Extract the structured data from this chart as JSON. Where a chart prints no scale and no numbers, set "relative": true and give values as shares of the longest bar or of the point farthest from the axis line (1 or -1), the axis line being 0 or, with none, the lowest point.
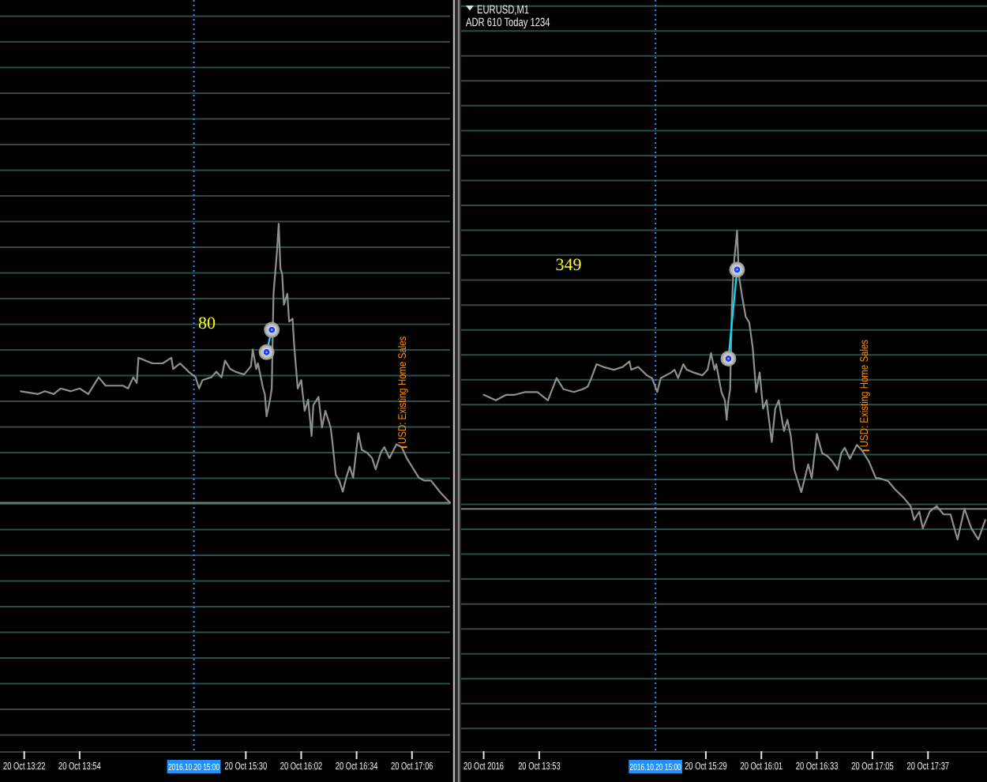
{
  "chart_data": [
    {
      "type": "line",
      "relative": true,
      "grid": "y",
      "xlim": [
        "2016-10-20T13:08",
        "2016-10-20T17:28"
      ],
      "xticks": [
        {
          "value": "2016-10-20T13:22",
          "label": "20 Oct 13:22"
        },
        {
          "value": "2016-10-20T13:54",
          "label": "20 Oct 13:54"
        },
        {
          "value": "2016-10-20T15:30",
          "label": "20 Oct 15:30"
        },
        {
          "value": "2016-10-20T16:02",
          "label": "20 Oct 16:02"
        },
        {
          "value": "2016-10-20T16:34",
          "label": "20 Oct 16:34"
        },
        {
          "value": "2016-10-20T17:06",
          "label": "20 Oct 17:06"
        }
      ],
      "x": [
        "2016-10-20T13:20",
        "2016-10-20T13:30",
        "2016-10-20T13:34",
        "2016-10-20T13:39",
        "2016-10-20T13:43",
        "2016-10-20T13:49",
        "2016-10-20T13:54",
        "2016-10-20T13:59",
        "2016-10-20T14:05",
        "2016-10-20T14:09",
        "2016-10-20T14:13",
        "2016-10-20T14:19",
        "2016-10-20T14:22",
        "2016-10-20T14:25",
        "2016-10-20T14:27",
        "2016-10-20T14:28",
        "2016-10-20T14:32",
        "2016-10-20T14:36",
        "2016-10-20T14:42",
        "2016-10-20T14:47",
        "2016-10-20T14:48",
        "2016-10-20T14:52",
        "2016-10-20T14:57",
        "2016-10-20T15:01",
        "2016-10-20T15:03",
        "2016-10-20T15:05",
        "2016-10-20T15:10",
        "2016-10-20T15:13",
        "2016-10-20T15:16",
        "2016-10-20T15:18",
        "2016-10-20T15:21",
        "2016-10-20T15:24",
        "2016-10-20T15:29",
        "2016-10-20T15:33",
        "2016-10-20T15:34",
        "2016-10-20T15:36",
        "2016-10-20T15:37",
        "2016-10-20T15:40",
        "2016-10-20T15:41",
        "2016-10-20T15:42",
        "2016-10-20T15:44",
        "2016-10-20T15:45",
        "2016-10-20T15:46",
        "2016-10-20T15:48",
        "2016-10-20T15:49",
        "2016-10-20T15:50",
        "2016-10-20T15:51",
        "2016-10-20T15:52",
        "2016-10-20T15:54",
        "2016-10-20T15:55",
        "2016-10-20T15:57",
        "2016-10-20T15:58",
        "2016-10-20T16:00",
        "2016-10-20T16:02",
        "2016-10-20T16:04",
        "2016-10-20T16:06",
        "2016-10-20T16:08",
        "2016-10-20T16:09",
        "2016-10-20T16:12",
        "2016-10-20T16:14",
        "2016-10-20T16:16",
        "2016-10-20T16:19",
        "2016-10-20T16:20",
        "2016-10-20T16:22",
        "2016-10-20T16:24",
        "2016-10-20T16:26",
        "2016-10-20T16:28",
        "2016-10-20T16:30",
        "2016-10-20T16:32",
        "2016-10-20T16:35",
        "2016-10-20T16:37",
        "2016-10-20T16:40",
        "2016-10-20T16:43",
        "2016-10-20T16:45",
        "2016-10-20T16:48",
        "2016-10-20T16:50",
        "2016-10-20T16:53",
        "2016-10-20T16:57",
        "2016-10-20T17:00",
        "2016-10-20T17:03",
        "2016-10-20T17:07",
        "2016-10-20T17:10",
        "2016-10-20T17:13",
        "2016-10-20T17:17",
        "2016-10-20T17:22",
        "2016-10-20T17:28"
      ],
      "series": [
        {
          "color": "#8f8f8f",
          "values": [
            0.4,
            0.39,
            0.4,
            0.39,
            0.41,
            0.4,
            0.41,
            0.39,
            0.45,
            0.42,
            0.42,
            0.42,
            0.41,
            0.45,
            0.43,
            0.52,
            0.51,
            0.5,
            0.5,
            0.52,
            0.48,
            0.5,
            0.47,
            0.45,
            0.41,
            0.44,
            0.45,
            0.47,
            0.45,
            0.51,
            0.48,
            0.47,
            0.46,
            0.49,
            0.55,
            0.48,
            0.5,
            0.41,
            0.39,
            0.31,
            0.37,
            0.41,
            0.75,
            0.9,
            1,
            0.84,
            0.82,
            0.71,
            0.75,
            0.65,
            0.66,
            0.56,
            0.41,
            0.44,
            0.33,
            0.37,
            0.24,
            0.35,
            0.38,
            0.27,
            0.33,
            0.27,
            0.22,
            0.1,
            0.08,
            0.04,
            0.09,
            0.13,
            0.09,
            0.25,
            0.19,
            0.18,
            0.16,
            0.12,
            0.18,
            0.2,
            0.16,
            0.21,
            0.2,
            0.16,
            0.12,
            0.09,
            0.08,
            0.08,
            0.04,
            0
          ]
        },
        {
          "type": "line",
          "marker": "circle",
          "color": "#00e5ff",
          "x": [
            "2016-10-20T15:42",
            "2016-10-20T15:45"
          ],
          "values": [
            0.54,
            0.62
          ]
        }
      ],
      "ref_lines": [
        {
          "axis": "x",
          "value": "2016-10-20T15:00",
          "label": "2016.10.20 15:00",
          "color": "#1e90ff",
          "line_style": "dotted"
        },
        {
          "axis": "y",
          "value": 0,
          "color": "#808080"
        }
      ],
      "annotations": [
        "80",
        {
          "text": "USD: Existing Home Sales",
          "x": "2016-10-20T17:00",
          "y": 0.2
        }
      ]
    },
    {
      "type": "line",
      "relative": true,
      "grid": "y",
      "title": "EURUSD,M1",
      "subtitle": "ADR 610 Today 1234",
      "xlim": [
        "2016-10-20T13:08",
        "2016-10-20T18:11"
      ],
      "xticks": [
        {
          "value": "2016-10-20T13:21",
          "label": "20 Oct 2016"
        },
        {
          "value": "2016-10-20T13:53",
          "label": "20 Oct 13:53"
        },
        {
          "value": "2016-10-20T15:29",
          "label": "20 Oct 15:29"
        },
        {
          "value": "2016-10-20T16:01",
          "label": "20 Oct 16:01"
        },
        {
          "value": "2016-10-20T16:33",
          "label": "20 Oct 16:33"
        },
        {
          "value": "2016-10-20T17:05",
          "label": "20 Oct 17:05"
        },
        {
          "value": "2016-10-20T17:37",
          "label": "20 Oct 17:37"
        }
      ],
      "x": [
        "2016-10-20T13:21",
        "2016-10-20T13:28",
        "2016-10-20T13:34",
        "2016-10-20T13:39",
        "2016-10-20T13:45",
        "2016-10-20T13:52",
        "2016-10-20T13:58",
        "2016-10-20T14:03",
        "2016-10-20T14:07",
        "2016-10-20T14:13",
        "2016-10-20T14:18",
        "2016-10-20T14:21",
        "2016-10-20T14:23",
        "2016-10-20T14:26",
        "2016-10-20T14:30",
        "2016-10-20T14:36",
        "2016-10-20T14:41",
        "2016-10-20T14:45",
        "2016-10-20T14:46",
        "2016-10-20T14:50",
        "2016-10-20T14:55",
        "2016-10-20T14:58",
        "2016-10-20T15:01",
        "2016-10-20T15:03",
        "2016-10-20T15:09",
        "2016-10-20T15:11",
        "2016-10-20T15:13",
        "2016-10-20T15:16",
        "2016-10-20T15:18",
        "2016-10-20T15:22",
        "2016-10-20T15:27",
        "2016-10-20T15:30",
        "2016-10-20T15:32",
        "2016-10-20T15:34",
        "2016-10-20T15:35",
        "2016-10-20T15:38",
        "2016-10-20T15:40",
        "2016-10-20T15:41",
        "2016-10-20T15:42",
        "2016-10-20T15:43",
        "2016-10-20T15:44",
        "2016-10-20T15:45",
        "2016-10-20T15:47",
        "2016-10-20T15:48",
        "2016-10-20T15:50",
        "2016-10-20T15:52",
        "2016-10-20T15:54",
        "2016-10-20T15:56",
        "2016-10-20T15:58",
        "2016-10-20T16:00",
        "2016-10-20T16:02",
        "2016-10-20T16:04",
        "2016-10-20T16:07",
        "2016-10-20T16:09",
        "2016-10-20T16:11",
        "2016-10-20T16:14",
        "2016-10-20T16:16",
        "2016-10-20T16:18",
        "2016-10-20T16:20",
        "2016-10-20T16:22",
        "2016-10-20T16:24",
        "2016-10-20T16:26",
        "2016-10-20T16:28",
        "2016-10-20T16:30",
        "2016-10-20T16:33",
        "2016-10-20T16:36",
        "2016-10-20T16:39",
        "2016-10-20T16:42",
        "2016-10-20T16:45",
        "2016-10-20T16:47",
        "2016-10-20T16:49",
        "2016-10-20T16:52",
        "2016-10-20T16:56",
        "2016-10-20T16:59",
        "2016-10-20T17:03",
        "2016-10-20T17:07",
        "2016-10-20T17:09",
        "2016-10-20T17:14",
        "2016-10-20T17:18",
        "2016-10-20T17:23",
        "2016-10-20T17:27",
        "2016-10-20T17:29",
        "2016-10-20T17:32",
        "2016-10-20T17:34",
        "2016-10-20T17:38",
        "2016-10-20T17:42",
        "2016-10-20T17:46",
        "2016-10-20T17:50",
        "2016-10-20T17:54",
        "2016-10-20T17:58",
        "2016-10-20T18:02",
        "2016-10-20T18:06",
        "2016-10-20T18:10"
      ],
      "series": [
        {
          "color": "#8f8f8f",
          "values": [
            0.41,
            0.39,
            0.41,
            0.41,
            0.42,
            0.42,
            0.39,
            0.47,
            0.43,
            0.42,
            0.43,
            0.44,
            0.47,
            0.52,
            0.51,
            0.5,
            0.51,
            0.53,
            0.5,
            0.51,
            0.48,
            0.47,
            0.42,
            0.47,
            0.49,
            0.5,
            0.47,
            0.52,
            0.5,
            0.49,
            0.48,
            0.5,
            0.56,
            0.5,
            0.52,
            0.42,
            0.39,
            0.32,
            0.39,
            0.43,
            0.73,
            0.87,
            1,
            0.84,
            0.76,
            0.69,
            0.67,
            0.58,
            0.42,
            0.49,
            0.36,
            0.39,
            0.24,
            0.36,
            0.39,
            0.28,
            0.32,
            0.26,
            0.14,
            0.1,
            0.06,
            0.11,
            0.16,
            0.11,
            0.27,
            0.2,
            0.19,
            0.17,
            0.14,
            0.2,
            0.22,
            0.18,
            0.23,
            0.21,
            0.17,
            0.11,
            0.11,
            0.1,
            0.07,
            0.04,
            0.01,
            -0.04,
            -0.01,
            -0.07,
            -0.01,
            0.01,
            -0.02,
            -0.02,
            -0.11,
            0,
            -0.07,
            -0.11,
            -0.04
          ]
        },
        {
          "type": "line",
          "marker": "circle",
          "color": "#00e5ff",
          "x": [
            "2016-10-20T15:42",
            "2016-10-20T15:47"
          ],
          "values": [
            0.54,
            0.86
          ]
        }
      ],
      "ref_lines": [
        {
          "axis": "x",
          "value": "2016-10-20T15:00",
          "label": "2016.10.20 15:00",
          "color": "#1e90ff",
          "line_style": "dotted"
        },
        {
          "axis": "y",
          "value": 0,
          "color": "#808080"
        }
      ],
      "annotations": [
        "349",
        {
          "text": "USD: Existing Home Sales",
          "x": "2016-10-20T17:00",
          "y": 0.21
        }
      ]
    }
  ]
}
